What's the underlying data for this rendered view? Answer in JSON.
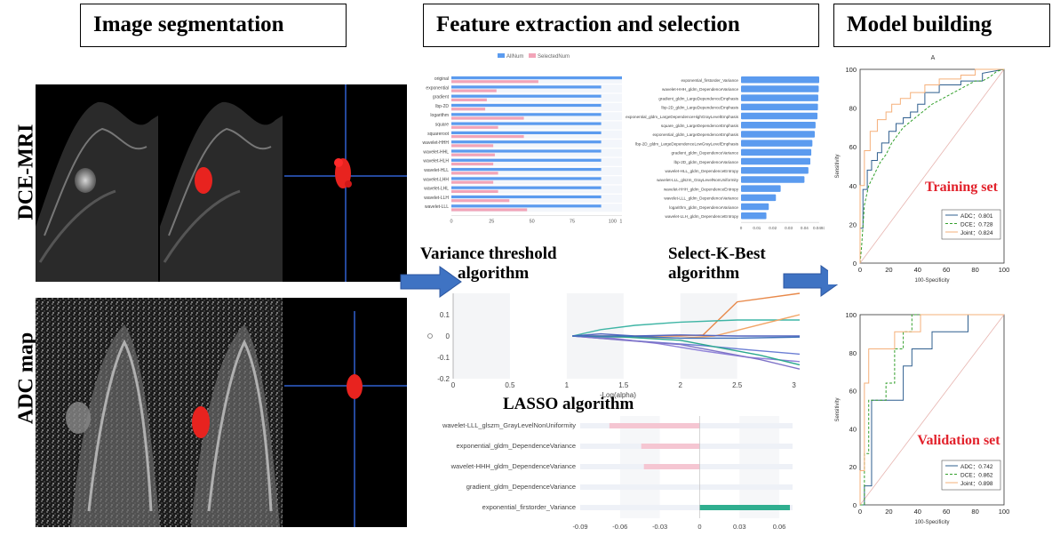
{
  "headers": {
    "segmentation": "Image segmentation",
    "feature": "Feature extraction and selection",
    "model": "Model building"
  },
  "rows": {
    "dce": "DCE-MRI",
    "adc": "ADC  map"
  },
  "algorithms": {
    "variance_l1": "Variance threshold",
    "variance_l2": "algorithm",
    "kbest_l1": "Select-K-Best",
    "kbest_l2": "algorithm",
    "lasso": "LASSO algorithm"
  },
  "colors": {
    "seg_red": "#e8231f",
    "all_num": "#5b9bef",
    "selected_num": "#f2a4b8",
    "arrow": "#3f73c3",
    "adc": "#2f5f8f",
    "dce": "#33a02c",
    "joint": "#f5b07a",
    "title_red": "#e2222c"
  },
  "chart_data": [
    {
      "type": "bar",
      "title": "",
      "legend": [
        "AllNum",
        "SelectedNum"
      ],
      "legend_position": "top",
      "categories": [
        "original",
        "exponential",
        "gradient",
        "lbp-2D",
        "logarithm",
        "square",
        "squareroot",
        "wavelet-HHH",
        "wavelet-HHL",
        "wavelet-HLH",
        "wavelet-HLL",
        "wavelet-LHH",
        "wavelet-LHL",
        "wavelet-LLH",
        "wavelet-LLL"
      ],
      "series": [
        {
          "name": "AllNum",
          "values": [
            107,
            93,
            93,
            93,
            93,
            93,
            93,
            93,
            93,
            93,
            93,
            93,
            93,
            93,
            93
          ]
        },
        {
          "name": "SelectedNum",
          "values": [
            54,
            28,
            22,
            21,
            45,
            29,
            45,
            26,
            27,
            26,
            29,
            26,
            29,
            36,
            47
          ]
        }
      ],
      "xticks": [
        "0",
        "25",
        "50",
        "75",
        "100",
        "107"
      ],
      "xlim": [
        0,
        107
      ]
    },
    {
      "type": "bar",
      "title": "",
      "categories": [
        "exponential_firstorder_Variance",
        "wavelet-HHH_gldm_DependenceVariance",
        "gradient_gldm_LargeDependenceEmphasis",
        "lbp-2D_gldm_LargeDependenceEmphasis",
        "exponential_gldm_LargeDependenceHighGrayLevelEmphasis",
        "square_gldm_LargeDependenceEmphasis",
        "exponential_gldm_LargeDependenceEmphasis",
        "lbp-2D_gldm_LargeDependenceLowGrayLevelEmphasis",
        "gradient_gldm_DependenceVariance",
        "lbp-2D_gldm_DependenceVariance",
        "wavelet-HLL_gldm_DependenceEntropy",
        "wavelet-LLL_glszm_GrayLevelNonUniformity",
        "wavelet-HHH_gldm_DependenceEntropy",
        "wavelet-LLL_gldm_DependenceVariance",
        "logarithm_gldm_DependenceVariance",
        "wavelet-LLH_gldm_DependenceEntropy"
      ],
      "values": [
        0.0493,
        0.049,
        0.0487,
        0.0485,
        0.0482,
        0.047,
        0.0465,
        0.045,
        0.0443,
        0.0437,
        0.0425,
        0.04,
        0.025,
        0.022,
        0.0175,
        0.016
      ],
      "xticks": [
        "0",
        "0.01",
        "0.02",
        "0.03",
        "0.04",
        "0.0493"
      ],
      "xlim": [
        0,
        0.0493
      ]
    },
    {
      "type": "line",
      "title": "",
      "xlabel": "-Log(alpha)",
      "xticks": [
        "0",
        "0.5",
        "1",
        "1.5",
        "2",
        "2.5",
        "3"
      ],
      "yticks": [
        "0.1",
        "0",
        "-0.1",
        "-0.2"
      ],
      "xlim": [
        0,
        3.05
      ],
      "ylim": [
        -0.2,
        0.2
      ],
      "series": [
        {
          "color": "#e8894a",
          "x": [
            1.05,
            1.5,
            2.0,
            2.2,
            2.5,
            3.05
          ],
          "y": [
            0,
            0,
            0,
            0.005,
            0.16,
            0.2
          ]
        },
        {
          "color": "#3fb5a5",
          "x": [
            1.05,
            1.3,
            1.6,
            2.0,
            2.5,
            3.05
          ],
          "y": [
            0,
            0.03,
            0.05,
            0.065,
            0.075,
            0.075
          ]
        },
        {
          "color": "#f2a566",
          "x": [
            1.05,
            1.5,
            2.0,
            2.3,
            2.6,
            3.05
          ],
          "y": [
            0,
            -0.005,
            -0.01,
            0,
            0.04,
            0.1
          ]
        },
        {
          "color": "#6b7ed4",
          "x": [
            1.05,
            1.4,
            1.8,
            2.2,
            2.6,
            3.05
          ],
          "y": [
            0,
            -0.015,
            -0.03,
            -0.045,
            -0.065,
            -0.085
          ]
        },
        {
          "color": "#8f82d9",
          "x": [
            1.05,
            1.4,
            1.8,
            2.2,
            2.6,
            3.05
          ],
          "y": [
            0,
            -0.01,
            -0.035,
            -0.07,
            -0.1,
            -0.12
          ]
        },
        {
          "color": "#2aa88e",
          "x": [
            1.05,
            1.5,
            2.0,
            2.4,
            2.7,
            3.05
          ],
          "y": [
            0,
            -0.005,
            -0.02,
            -0.06,
            -0.09,
            -0.135
          ]
        },
        {
          "color": "#7f73c8",
          "x": [
            1.05,
            1.5,
            2.0,
            2.4,
            2.7,
            3.05
          ],
          "y": [
            0,
            -0.02,
            -0.04,
            -0.08,
            -0.11,
            -0.155
          ]
        },
        {
          "color": "#5566c0",
          "x": [
            1.05,
            1.3,
            1.6,
            2.0,
            2.5,
            3.05
          ],
          "y": [
            0,
            0.01,
            0.0,
            0.005,
            0.0,
            0.0
          ]
        },
        {
          "color": "#3b6fb8",
          "x": [
            1.05,
            1.5,
            2.0,
            2.5,
            3.05
          ],
          "y": [
            0,
            0,
            -0.01,
            -0.01,
            -0.005
          ]
        }
      ]
    },
    {
      "type": "bar",
      "title": "",
      "categories": [
        "wavelet-LLL_glszm_GrayLevelNonUniformity",
        "exponential_gldm_DependenceVariance",
        "wavelet-HHH_gldm_DependenceVariance",
        "gradient_gldm_DependenceVariance",
        "exponential_firstorder_Variance"
      ],
      "values": [
        -0.068,
        -0.044,
        -0.042,
        0.0,
        0.068
      ],
      "xticks": [
        "-0.09",
        "-0.06",
        "-0.03",
        "0",
        "0.03",
        "0.06"
      ],
      "xlim": [
        -0.09,
        0.07
      ]
    },
    {
      "type": "line",
      "title": "Training set",
      "title_header": "A",
      "xlabel": "100-Specificity",
      "ylabel": "Sensitivity",
      "xticks": [
        "0",
        "20",
        "40",
        "60",
        "80",
        "100"
      ],
      "yticks": [
        "0",
        "20",
        "40",
        "60",
        "80",
        "100"
      ],
      "xlim": [
        0,
        100
      ],
      "ylim": [
        0,
        100
      ],
      "legend_position": "bottom-right",
      "series": [
        {
          "name": "ADC：0.801",
          "x": [
            0,
            0,
            2,
            2,
            5,
            5,
            8,
            8,
            12,
            12,
            15,
            15,
            20,
            20,
            25,
            25,
            30,
            30,
            35,
            35,
            40,
            40,
            45,
            45,
            55,
            55,
            70,
            70,
            85,
            85,
            100
          ],
          "y": [
            0,
            18,
            18,
            38,
            38,
            48,
            48,
            53,
            53,
            57,
            57,
            62,
            62,
            68,
            68,
            72,
            72,
            75,
            75,
            78,
            78,
            82,
            82,
            88,
            88,
            92,
            92,
            94,
            94,
            98,
            100
          ]
        },
        {
          "name": "DCE：0.728",
          "x": [
            0,
            1,
            3,
            6,
            8,
            10,
            14,
            18,
            22,
            26,
            30,
            35,
            40,
            45,
            50,
            55,
            60,
            65,
            70,
            75,
            80,
            85,
            90,
            95,
            100
          ],
          "y": [
            0,
            8,
            30,
            40,
            43,
            46,
            52,
            56,
            62,
            66,
            70,
            73,
            76,
            79,
            82,
            84,
            86,
            88,
            90,
            92,
            94,
            94,
            96,
            99,
            100
          ]
        },
        {
          "name": "Joint：0.824",
          "x": [
            0,
            0,
            3,
            3,
            7,
            7,
            12,
            12,
            18,
            18,
            22,
            22,
            28,
            28,
            35,
            35,
            45,
            45,
            55,
            55,
            70,
            70,
            80,
            80,
            100
          ],
          "y": [
            0,
            40,
            40,
            58,
            58,
            68,
            68,
            74,
            74,
            78,
            78,
            82,
            82,
            85,
            85,
            88,
            88,
            92,
            92,
            95,
            95,
            97,
            97,
            100,
            100
          ]
        }
      ]
    },
    {
      "type": "line",
      "title": "Validation set",
      "xlabel": "100-Specificity",
      "ylabel": "Sensitivity",
      "xticks": [
        "0",
        "20",
        "40",
        "60",
        "80",
        "100"
      ],
      "yticks": [
        "0",
        "20",
        "40",
        "60",
        "80",
        "100"
      ],
      "xlim": [
        0,
        100
      ],
      "ylim": [
        0,
        100
      ],
      "legend_position": "bottom-right",
      "series": [
        {
          "name": "ADC：0.742",
          "x": [
            0,
            3,
            3,
            8,
            8,
            12,
            12,
            30,
            30,
            36,
            36,
            50,
            50,
            75,
            75,
            100
          ],
          "y": [
            0,
            0,
            10,
            10,
            55,
            55,
            55,
            55,
            73,
            73,
            82,
            82,
            91,
            91,
            100,
            100
          ]
        },
        {
          "name": "DCE：0.862",
          "x": [
            0,
            3,
            3,
            6,
            6,
            18,
            18,
            24,
            24,
            30,
            30,
            36,
            36,
            50,
            50,
            100
          ],
          "y": [
            0,
            0,
            27,
            27,
            55,
            55,
            64,
            64,
            82,
            82,
            91,
            91,
            100,
            100,
            100,
            100
          ]
        },
        {
          "name": "Joint：0.898",
          "x": [
            0,
            0,
            3,
            3,
            6,
            6,
            18,
            18,
            24,
            24,
            42,
            42,
            100
          ],
          "y": [
            0,
            18,
            18,
            64,
            64,
            82,
            82,
            82,
            82,
            91,
            91,
            100,
            100
          ]
        }
      ]
    }
  ]
}
